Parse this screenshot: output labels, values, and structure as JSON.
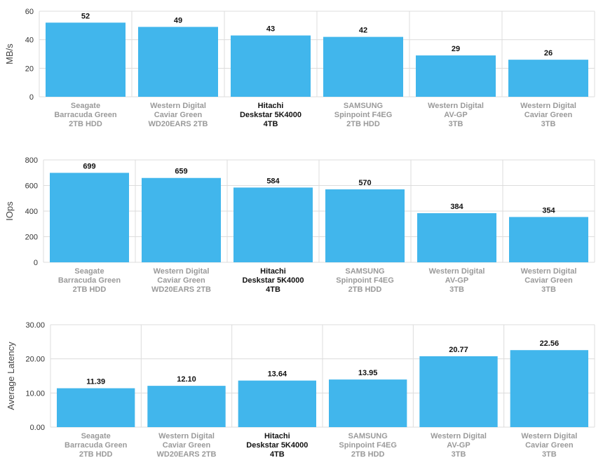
{
  "colors": {
    "bar": "#41b6ec",
    "grid": "#dcdcdc",
    "highlight_text": "#111111",
    "category_text": "#9a9a9a"
  },
  "highlight_index": 2,
  "categories": [
    [
      "Seagate",
      "Barracuda Green",
      "2TB HDD"
    ],
    [
      "Western Digital",
      "Caviar Green",
      "WD20EARS 2TB"
    ],
    [
      "Hitachi",
      "Deskstar 5K4000",
      "4TB"
    ],
    [
      "SAMSUNG",
      "Spinpoint F4EG",
      "2TB HDD"
    ],
    [
      "Western Digital",
      "AV-GP",
      "3TB"
    ],
    [
      "Western Digital",
      "Caviar Green",
      "3TB"
    ]
  ],
  "chart_data": [
    {
      "type": "bar",
      "ylabel": "MB/s",
      "ylim": [
        0,
        60
      ],
      "yticks": [
        0,
        20,
        40,
        60
      ],
      "ytick_labels": [
        "0",
        "20",
        "40",
        "60"
      ],
      "values": [
        52,
        49,
        43,
        42,
        29,
        26
      ],
      "value_labels": [
        "52",
        "49",
        "43",
        "42",
        "29",
        "26"
      ]
    },
    {
      "type": "bar",
      "ylabel": "IOps",
      "ylim": [
        0,
        800
      ],
      "yticks": [
        0,
        200,
        400,
        600,
        800
      ],
      "ytick_labels": [
        "0",
        "200",
        "400",
        "600",
        "800"
      ],
      "values": [
        699,
        659,
        584,
        570,
        384,
        354
      ],
      "value_labels": [
        "699",
        "659",
        "584",
        "570",
        "384",
        "354"
      ]
    },
    {
      "type": "bar",
      "ylabel": "Average Latency",
      "ylim": [
        0,
        30
      ],
      "yticks": [
        0,
        10,
        20,
        30
      ],
      "ytick_labels": [
        "0.00",
        "10.00",
        "20.00",
        "30.00"
      ],
      "values": [
        11.39,
        12.1,
        13.64,
        13.95,
        20.77,
        22.56
      ],
      "value_labels": [
        "11.39",
        "12.10",
        "13.64",
        "13.95",
        "20.77",
        "22.56"
      ]
    }
  ]
}
